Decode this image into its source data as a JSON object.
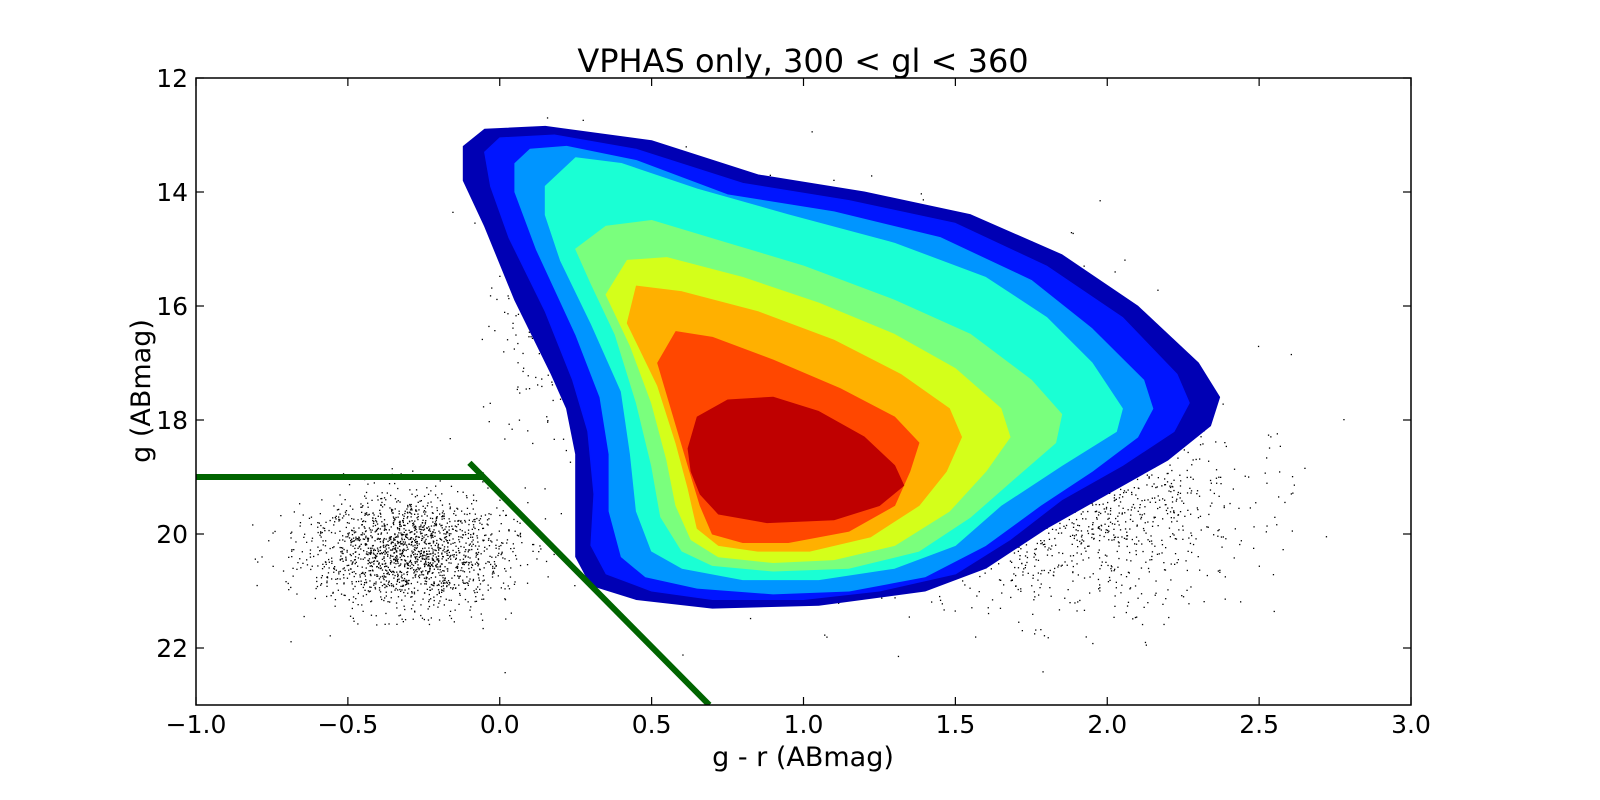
{
  "chart_data": {
    "type": "scatter",
    "title": "VPHAS only, 300 < gl < 360",
    "xlabel": "g - r (ABmag)",
    "ylabel": "g (ABmag)",
    "xlim": [
      -1.0,
      3.0
    ],
    "ylim": [
      23,
      12
    ],
    "y_inverted": true,
    "xticks": [
      "−1.0",
      "−0.5",
      "0.0",
      "0.5",
      "1.0",
      "1.5",
      "2.0",
      "2.5",
      "3.0"
    ],
    "yticks": [
      "12",
      "14",
      "16",
      "18",
      "20",
      "22"
    ],
    "grid": false,
    "legend": "none",
    "scatter_color": "#000000",
    "background_cloud": {
      "description_in_data_units": "dense black point cloud around the contoured region",
      "blobs": [
        {
          "center": [
            1.2,
            17.8
          ],
          "spread": [
            0.55,
            2.2
          ],
          "weight": 0.55
        },
        {
          "center": [
            -0.3,
            20.3
          ],
          "spread": [
            0.3,
            0.9
          ],
          "weight": 0.2
        },
        {
          "center": [
            0.3,
            16.0
          ],
          "spread": [
            0.25,
            2.0
          ],
          "weight": 0.1
        },
        {
          "center": [
            1.9,
            19.5
          ],
          "spread": [
            0.5,
            1.6
          ],
          "weight": 0.15
        }
      ]
    },
    "density_contours": {
      "levels": [
        {
          "color": "#0000b4",
          "polygon": [
            [
              -0.12,
              13.2
            ],
            [
              -0.05,
              12.9
            ],
            [
              0.15,
              12.85
            ],
            [
              0.5,
              13.1
            ],
            [
              0.85,
              13.7
            ],
            [
              1.2,
              14.0
            ],
            [
              1.55,
              14.4
            ],
            [
              1.85,
              15.1
            ],
            [
              2.1,
              16.0
            ],
            [
              2.3,
              17.0
            ],
            [
              2.37,
              17.6
            ],
            [
              2.34,
              18.1
            ],
            [
              2.2,
              18.7
            ],
            [
              2.0,
              19.3
            ],
            [
              1.8,
              19.9
            ],
            [
              1.6,
              20.6
            ],
            [
              1.4,
              21.0
            ],
            [
              1.05,
              21.25
            ],
            [
              0.7,
              21.3
            ],
            [
              0.45,
              21.15
            ],
            [
              0.3,
              20.9
            ],
            [
              0.25,
              20.4
            ],
            [
              0.25,
              19.8
            ],
            [
              0.25,
              18.6
            ],
            [
              0.22,
              17.8
            ],
            [
              0.17,
              17.2
            ],
            [
              0.05,
              15.9
            ],
            [
              -0.05,
              14.6
            ],
            [
              -0.12,
              13.8
            ]
          ]
        },
        {
          "color": "#0015ff",
          "polygon": [
            [
              -0.05,
              13.3
            ],
            [
              0.0,
              13.05
            ],
            [
              0.18,
              13.0
            ],
            [
              0.45,
              13.25
            ],
            [
              0.8,
              13.85
            ],
            [
              1.15,
              14.15
            ],
            [
              1.5,
              14.55
            ],
            [
              1.8,
              15.3
            ],
            [
              2.05,
              16.2
            ],
            [
              2.23,
              17.2
            ],
            [
              2.27,
              17.7
            ],
            [
              2.22,
              18.2
            ],
            [
              2.05,
              18.8
            ],
            [
              1.85,
              19.4
            ],
            [
              1.68,
              20.1
            ],
            [
              1.5,
              20.7
            ],
            [
              1.25,
              21.0
            ],
            [
              1.0,
              21.15
            ],
            [
              0.7,
              21.15
            ],
            [
              0.5,
              21.0
            ],
            [
              0.35,
              20.7
            ],
            [
              0.3,
              20.2
            ],
            [
              0.31,
              19.3
            ],
            [
              0.29,
              18.2
            ],
            [
              0.24,
              17.3
            ],
            [
              0.15,
              16.1
            ],
            [
              0.03,
              14.8
            ],
            [
              -0.03,
              13.9
            ]
          ]
        },
        {
          "color": "#0095ff",
          "polygon": [
            [
              0.05,
              13.5
            ],
            [
              0.1,
              13.25
            ],
            [
              0.22,
              13.2
            ],
            [
              0.45,
              13.45
            ],
            [
              0.75,
              14.05
            ],
            [
              1.1,
              14.35
            ],
            [
              1.45,
              14.8
            ],
            [
              1.75,
              15.55
            ],
            [
              1.95,
              16.4
            ],
            [
              2.12,
              17.3
            ],
            [
              2.15,
              17.8
            ],
            [
              2.1,
              18.3
            ],
            [
              1.95,
              18.9
            ],
            [
              1.78,
              19.5
            ],
            [
              1.6,
              20.2
            ],
            [
              1.4,
              20.75
            ],
            [
              1.15,
              21.0
            ],
            [
              0.9,
              21.05
            ],
            [
              0.65,
              20.95
            ],
            [
              0.48,
              20.75
            ],
            [
              0.4,
              20.4
            ],
            [
              0.36,
              19.6
            ],
            [
              0.36,
              18.6
            ],
            [
              0.33,
              17.6
            ],
            [
              0.25,
              16.5
            ],
            [
              0.12,
              15.0
            ],
            [
              0.05,
              14.0
            ]
          ]
        },
        {
          "color": "#1affd4",
          "polygon": [
            [
              0.15,
              13.9
            ],
            [
              0.25,
              13.4
            ],
            [
              0.4,
              13.5
            ],
            [
              0.65,
              13.95
            ],
            [
              0.95,
              14.4
            ],
            [
              1.3,
              14.9
            ],
            [
              1.6,
              15.5
            ],
            [
              1.8,
              16.2
            ],
            [
              1.95,
              17.0
            ],
            [
              2.05,
              17.8
            ],
            [
              2.03,
              18.2
            ],
            [
              1.85,
              18.8
            ],
            [
              1.65,
              19.5
            ],
            [
              1.5,
              20.2
            ],
            [
              1.3,
              20.6
            ],
            [
              1.05,
              20.8
            ],
            [
              0.8,
              20.8
            ],
            [
              0.6,
              20.6
            ],
            [
              0.5,
              20.3
            ],
            [
              0.45,
              19.6
            ],
            [
              0.43,
              18.6
            ],
            [
              0.4,
              17.5
            ],
            [
              0.3,
              16.3
            ],
            [
              0.2,
              15.2
            ],
            [
              0.15,
              14.4
            ]
          ]
        },
        {
          "color": "#7aff7d",
          "polygon": [
            [
              0.25,
              15.0
            ],
            [
              0.35,
              14.6
            ],
            [
              0.5,
              14.5
            ],
            [
              0.75,
              14.9
            ],
            [
              1.0,
              15.3
            ],
            [
              1.3,
              15.9
            ],
            [
              1.55,
              16.5
            ],
            [
              1.75,
              17.3
            ],
            [
              1.85,
              17.9
            ],
            [
              1.83,
              18.4
            ],
            [
              1.7,
              19.0
            ],
            [
              1.55,
              19.7
            ],
            [
              1.38,
              20.3
            ],
            [
              1.15,
              20.6
            ],
            [
              0.9,
              20.65
            ],
            [
              0.7,
              20.55
            ],
            [
              0.6,
              20.3
            ],
            [
              0.53,
              19.7
            ],
            [
              0.5,
              18.8
            ],
            [
              0.45,
              17.7
            ],
            [
              0.38,
              16.5
            ],
            [
              0.3,
              15.6
            ]
          ]
        },
        {
          "color": "#d4ff1a",
          "polygon": [
            [
              0.35,
              15.8
            ],
            [
              0.42,
              15.2
            ],
            [
              0.55,
              15.15
            ],
            [
              0.8,
              15.5
            ],
            [
              1.05,
              15.95
            ],
            [
              1.3,
              16.5
            ],
            [
              1.5,
              17.1
            ],
            [
              1.65,
              17.8
            ],
            [
              1.68,
              18.3
            ],
            [
              1.6,
              18.9
            ],
            [
              1.48,
              19.6
            ],
            [
              1.3,
              20.2
            ],
            [
              1.1,
              20.45
            ],
            [
              0.9,
              20.5
            ],
            [
              0.72,
              20.4
            ],
            [
              0.63,
              20.1
            ],
            [
              0.58,
              19.5
            ],
            [
              0.55,
              18.7
            ],
            [
              0.5,
              17.7
            ],
            [
              0.43,
              16.7
            ]
          ]
        },
        {
          "color": "#ffb000",
          "polygon": [
            [
              0.42,
              16.3
            ],
            [
              0.45,
              15.65
            ],
            [
              0.6,
              15.75
            ],
            [
              0.85,
              16.1
            ],
            [
              1.1,
              16.6
            ],
            [
              1.32,
              17.2
            ],
            [
              1.48,
              17.8
            ],
            [
              1.52,
              18.3
            ],
            [
              1.47,
              18.9
            ],
            [
              1.38,
              19.5
            ],
            [
              1.22,
              20.05
            ],
            [
              1.02,
              20.3
            ],
            [
              0.85,
              20.3
            ],
            [
              0.72,
              20.2
            ],
            [
              0.65,
              19.9
            ],
            [
              0.62,
              19.2
            ],
            [
              0.58,
              18.4
            ],
            [
              0.52,
              17.4
            ]
          ]
        },
        {
          "color": "#ff4700",
          "polygon": [
            [
              0.52,
              17.0
            ],
            [
              0.58,
              16.45
            ],
            [
              0.7,
              16.55
            ],
            [
              0.9,
              16.95
            ],
            [
              1.12,
              17.45
            ],
            [
              1.3,
              17.95
            ],
            [
              1.38,
              18.4
            ],
            [
              1.35,
              18.9
            ],
            [
              1.3,
              19.5
            ],
            [
              1.15,
              19.95
            ],
            [
              0.95,
              20.15
            ],
            [
              0.8,
              20.15
            ],
            [
              0.7,
              20.0
            ],
            [
              0.66,
              19.5
            ],
            [
              0.62,
              18.8
            ],
            [
              0.57,
              17.9
            ]
          ]
        },
        {
          "color": "#bf0000",
          "polygon": [
            [
              0.62,
              18.5
            ],
            [
              0.65,
              17.95
            ],
            [
              0.75,
              17.65
            ],
            [
              0.9,
              17.6
            ],
            [
              1.05,
              17.85
            ],
            [
              1.2,
              18.3
            ],
            [
              1.3,
              18.8
            ],
            [
              1.33,
              19.15
            ],
            [
              1.25,
              19.5
            ],
            [
              1.1,
              19.75
            ],
            [
              0.88,
              19.8
            ],
            [
              0.72,
              19.65
            ],
            [
              0.66,
              19.3
            ],
            [
              0.63,
              18.9
            ]
          ]
        }
      ]
    },
    "lines": [
      {
        "color": "#006400",
        "points": [
          [
            -1.0,
            19.0
          ],
          [
            -0.05,
            19.0
          ]
        ]
      },
      {
        "color": "#006400",
        "points": [
          [
            -0.1,
            18.75
          ],
          [
            0.69,
            23.0
          ]
        ]
      }
    ]
  }
}
